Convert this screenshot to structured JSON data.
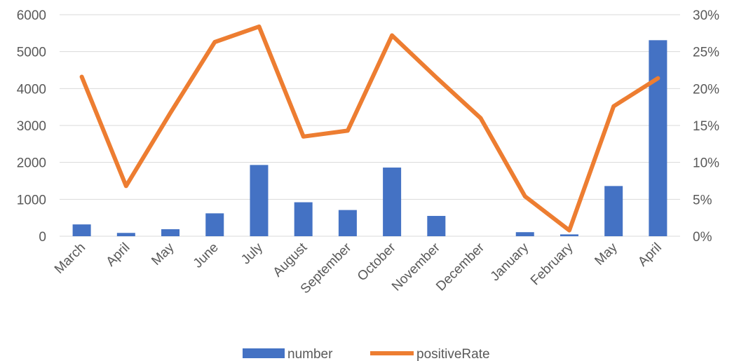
{
  "chart_data": {
    "type": "bar+line",
    "categories": [
      "March",
      "April",
      "May",
      "June",
      "July",
      "August",
      "September",
      "October",
      "November",
      "December",
      "January",
      "February",
      "May",
      "April"
    ],
    "series": [
      {
        "name": "number",
        "type": "bar",
        "axis": "left",
        "color": "#4472C4",
        "values": [
          320,
          90,
          190,
          620,
          1930,
          920,
          710,
          1860,
          550,
          0,
          110,
          50,
          1360,
          5310
        ]
      },
      {
        "name": "positiveRate",
        "type": "line",
        "axis": "right",
        "color": "#ED7D31",
        "values": [
          0.216,
          0.068,
          0.167,
          0.263,
          0.284,
          0.135,
          0.143,
          0.272,
          0.215,
          0.16,
          0.054,
          0.008,
          0.176,
          0.214
        ]
      }
    ],
    "y_left": {
      "ylim": [
        0,
        6000
      ],
      "ticks": [
        0,
        1000,
        2000,
        3000,
        4000,
        5000,
        6000
      ],
      "tick_labels": [
        "0",
        "1000",
        "2000",
        "3000",
        "4000",
        "5000",
        "6000"
      ]
    },
    "y_right": {
      "ylim": [
        0,
        0.3
      ],
      "ticks": [
        0,
        0.05,
        0.1,
        0.15,
        0.2,
        0.25,
        0.3
      ],
      "tick_labels": [
        "0%",
        "5%",
        "10%",
        "15%",
        "20%",
        "25%",
        "30%"
      ]
    },
    "grid": true,
    "legend": "bottom",
    "title": "",
    "xlabel": "",
    "ylabel": ""
  }
}
